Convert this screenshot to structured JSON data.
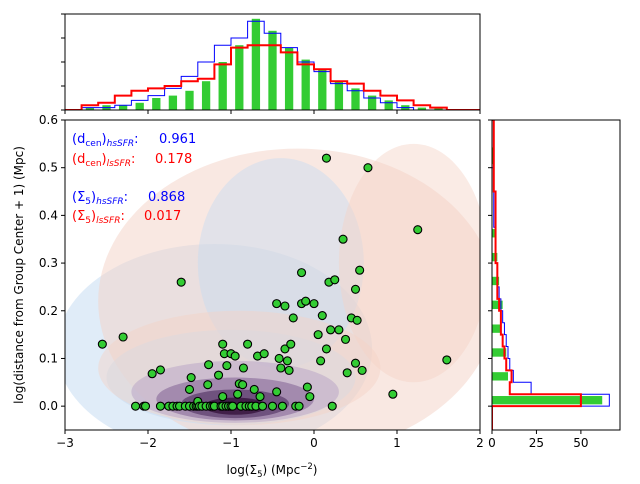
{
  "colors": {
    "hs": "#0000ff",
    "ls": "#ff0000",
    "bars": "#33cc33",
    "points": "#33cc33",
    "point_edge": "#000000",
    "contour_blue": "#c6dcf2",
    "contour_red": "#f3d2c6",
    "contour_dark": "#3c1a44"
  },
  "chart_data": {
    "type": "scatter",
    "xlabel_main": "log(Σ",
    "xlabel_sub": "5",
    "xlabel_rest": ") (Mpc",
    "xlabel_sup": "−2",
    "xlabel_end": ")",
    "ylabel": "log(distance from Group Center + 1) (Mpc)",
    "xlim": [
      -3,
      2
    ],
    "ylim": [
      -0.05,
      0.6
    ],
    "xticks": [
      "−3",
      "−2",
      "−1",
      "0",
      "1",
      "2"
    ],
    "xtick_values": [
      -3,
      -2,
      -1,
      0,
      1,
      2
    ],
    "yticks": [
      "0.0",
      "0.1",
      "0.2",
      "0.3",
      "0.4",
      "0.5",
      "0.6"
    ],
    "ytick_values": [
      0.0,
      0.1,
      0.2,
      0.3,
      0.4,
      0.5,
      0.6
    ],
    "right_xticks": [
      "0",
      "25",
      "50"
    ],
    "right_xtick_values": [
      0,
      25,
      50
    ],
    "right_xlim": [
      0,
      72
    ],
    "annotations": [
      {
        "base": "(d",
        "sub1": "cen",
        "close": ")",
        "sub2": "hsSFR",
        "sep": ":",
        "value": "0.961",
        "color": "blue"
      },
      {
        "base": "(d",
        "sub1": "cen",
        "close": ")",
        "sub2": "lsSFR",
        "sep": ":",
        "value": "0.178",
        "color": "red"
      },
      {
        "base": "(Σ",
        "sub1": "5",
        "close": ")",
        "sub2": "hsSFR",
        "sep": ":",
        "value": "0.868",
        "color": "blue"
      },
      {
        "base": "(Σ",
        "sub1": "5",
        "close": ")",
        "sub2": "lsSFR",
        "sep": ":",
        "value": "0.017",
        "color": "red"
      }
    ],
    "points": [
      [
        -2.55,
        0.13
      ],
      [
        -2.3,
        0.145
      ],
      [
        -2.15,
        0.0
      ],
      [
        -2.05,
        0.0
      ],
      [
        -2.03,
        0.0
      ],
      [
        -1.95,
        0.068
      ],
      [
        -1.85,
        0.076
      ],
      [
        -1.85,
        0.0
      ],
      [
        -1.75,
        0.0
      ],
      [
        -1.7,
        0.0
      ],
      [
        -1.65,
        0.0
      ],
      [
        -1.62,
        0.0
      ],
      [
        -1.6,
        0.26
      ],
      [
        -1.55,
        0.0
      ],
      [
        -1.5,
        0.0
      ],
      [
        -1.5,
        0.035
      ],
      [
        -1.48,
        0.06
      ],
      [
        -1.45,
        0.0
      ],
      [
        -1.42,
        0.0
      ],
      [
        -1.4,
        0.0
      ],
      [
        -1.4,
        0.01
      ],
      [
        -1.38,
        0.0
      ],
      [
        -1.35,
        0.0
      ],
      [
        -1.3,
        0.0
      ],
      [
        -1.28,
        0.045
      ],
      [
        -1.27,
        0.087
      ],
      [
        -1.25,
        0.0
      ],
      [
        -1.22,
        0.0
      ],
      [
        -1.2,
        0.0
      ],
      [
        -1.15,
        0.065
      ],
      [
        -1.12,
        0.0
      ],
      [
        -1.1,
        0.02
      ],
      [
        -1.1,
        0.13
      ],
      [
        -1.1,
        0.0
      ],
      [
        -1.08,
        0.11
      ],
      [
        -1.06,
        0.0
      ],
      [
        -1.05,
        0.085
      ],
      [
        -1.03,
        0.0
      ],
      [
        -1.0,
        0.0
      ],
      [
        -1.0,
        0.11
      ],
      [
        -0.98,
        0.0
      ],
      [
        -0.95,
        0.105
      ],
      [
        -0.92,
        0.025
      ],
      [
        -0.9,
        0.047
      ],
      [
        -0.88,
        0.0
      ],
      [
        -0.86,
        0.045
      ],
      [
        -0.85,
        0.08
      ],
      [
        -0.82,
        0.0
      ],
      [
        -0.8,
        0.13
      ],
      [
        -0.78,
        0.0
      ],
      [
        -0.75,
        0.0
      ],
      [
        -0.72,
        0.035
      ],
      [
        -0.7,
        0.0
      ],
      [
        -0.68,
        0.105
      ],
      [
        -0.65,
        0.02
      ],
      [
        -0.62,
        0.0
      ],
      [
        -0.6,
        0.11
      ],
      [
        -0.5,
        0.0
      ],
      [
        -0.45,
        0.03
      ],
      [
        -0.45,
        0.215
      ],
      [
        -0.42,
        0.1
      ],
      [
        -0.4,
        0.08
      ],
      [
        -0.38,
        0.0
      ],
      [
        -0.35,
        0.21
      ],
      [
        -0.35,
        0.12
      ],
      [
        -0.32,
        0.095
      ],
      [
        -0.3,
        0.075
      ],
      [
        -0.28,
        0.13
      ],
      [
        -0.25,
        0.185
      ],
      [
        -0.22,
        0.0
      ],
      [
        -0.18,
        0.0
      ],
      [
        -0.15,
        0.28
      ],
      [
        -0.15,
        0.215
      ],
      [
        -0.1,
        0.22
      ],
      [
        -0.08,
        0.04
      ],
      [
        -0.05,
        0.02
      ],
      [
        0.0,
        0.215
      ],
      [
        0.05,
        0.15
      ],
      [
        0.08,
        0.095
      ],
      [
        0.1,
        0.19
      ],
      [
        0.15,
        0.52
      ],
      [
        0.15,
        0.12
      ],
      [
        0.18,
        0.26
      ],
      [
        0.2,
        0.16
      ],
      [
        0.22,
        0.0
      ],
      [
        0.25,
        0.265
      ],
      [
        0.3,
        0.16
      ],
      [
        0.35,
        0.35
      ],
      [
        0.38,
        0.14
      ],
      [
        0.4,
        0.07
      ],
      [
        0.45,
        0.185
      ],
      [
        0.5,
        0.245
      ],
      [
        0.5,
        0.09
      ],
      [
        0.52,
        0.18
      ],
      [
        0.55,
        0.285
      ],
      [
        0.58,
        0.075
      ],
      [
        0.65,
        0.5
      ],
      [
        0.95,
        0.025
      ],
      [
        1.25,
        0.37
      ],
      [
        1.6,
        0.097
      ]
    ],
    "top_hist": {
      "bin_edges": [
        -3.0,
        -2.8,
        -2.6,
        -2.4,
        -2.2,
        -2.0,
        -1.8,
        -1.6,
        -1.4,
        -1.2,
        -1.0,
        -0.8,
        -0.6,
        -0.4,
        -0.2,
        0.0,
        0.2,
        0.4,
        0.6,
        0.8,
        1.0,
        1.2,
        1.4,
        1.6,
        1.8,
        2.0
      ],
      "green_bars": [
        0,
        1,
        2,
        2,
        3,
        5,
        6,
        8,
        12,
        20,
        27,
        38,
        33,
        26,
        21,
        17,
        12,
        9,
        6,
        4,
        2,
        1,
        1,
        0,
        0
      ],
      "blue_step": [
        0,
        1,
        1,
        2,
        4,
        6,
        9,
        14,
        20,
        27,
        30,
        37,
        32,
        26,
        20,
        16,
        11,
        8,
        5,
        3,
        1,
        0,
        0,
        0,
        0
      ],
      "red_step": [
        0,
        2,
        3,
        6,
        8,
        9,
        10,
        12,
        13,
        19,
        26,
        27,
        27,
        24,
        19,
        17,
        12,
        11,
        8,
        6,
        4,
        2,
        1,
        0,
        0
      ],
      "ymax": 40
    },
    "right_hist": {
      "bin_edges": [
        -0.05,
        0.0,
        0.025,
        0.05,
        0.075,
        0.1,
        0.125,
        0.15,
        0.175,
        0.2,
        0.225,
        0.25,
        0.275,
        0.3,
        0.325,
        0.35,
        0.375,
        0.4,
        0.45,
        0.5,
        0.55,
        0.6
      ],
      "green_bars": [
        0,
        62,
        0,
        9,
        0,
        8,
        0,
        5,
        0,
        6,
        0,
        4,
        0,
        3,
        0,
        2,
        0,
        0,
        0,
        1,
        0
      ],
      "blue_step": [
        0,
        66,
        22,
        12,
        10,
        9,
        8,
        7,
        6,
        5,
        4,
        3,
        3,
        2,
        2,
        2,
        1,
        1,
        1,
        0,
        0
      ],
      "red_step": [
        0,
        50,
        10,
        11,
        8,
        7,
        6,
        5,
        5,
        4,
        3,
        3,
        3,
        2,
        2,
        2,
        2,
        2,
        1,
        1,
        1
      ]
    }
  }
}
